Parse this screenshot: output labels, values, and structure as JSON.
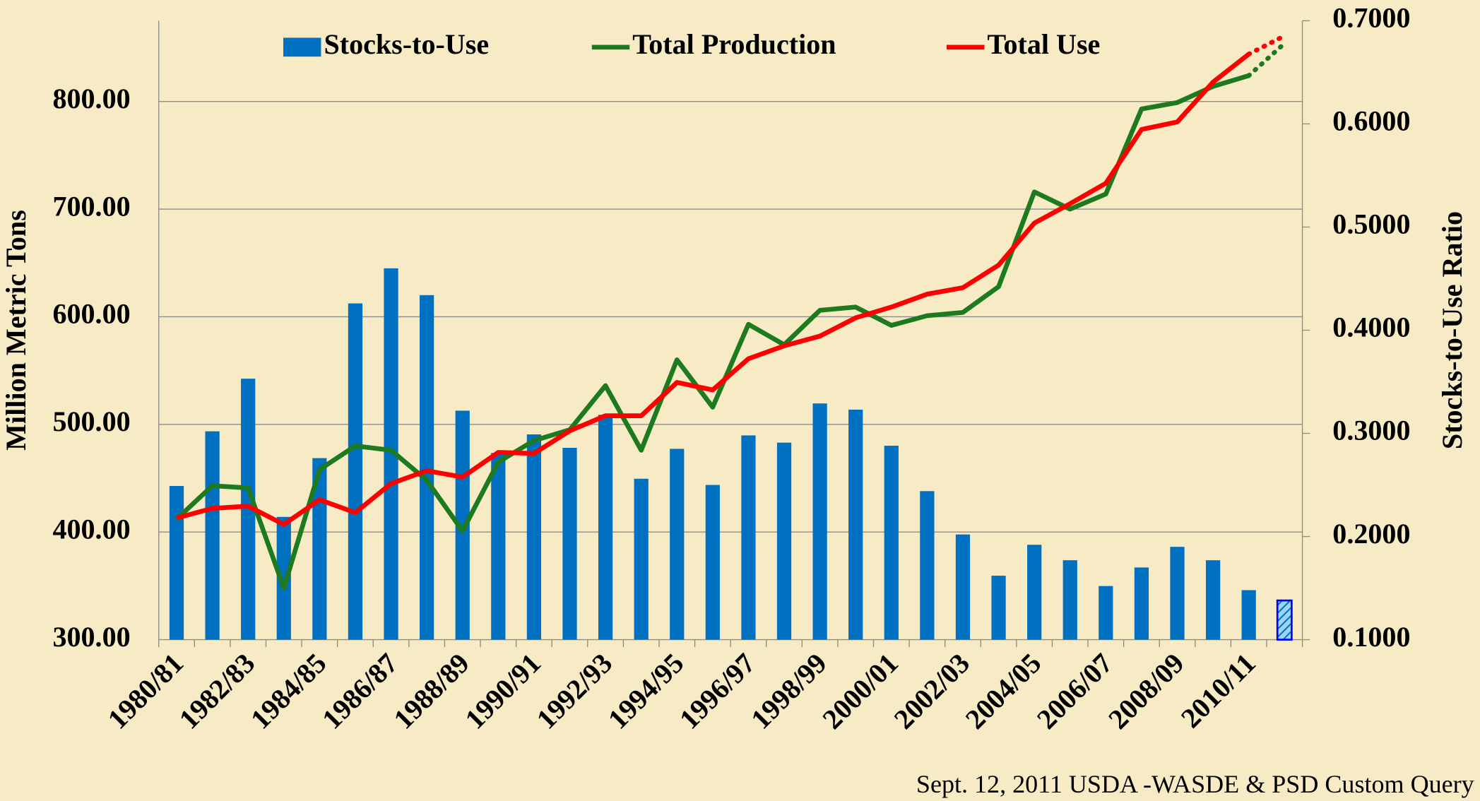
{
  "chart_data": {
    "type": "bar",
    "categories": [
      "1980/81",
      null,
      "1982/83",
      null,
      "1984/85",
      null,
      "1986/87",
      null,
      "1988/89",
      null,
      "1990/91",
      null,
      "1992/93",
      null,
      "1994/95",
      null,
      "1996/97",
      null,
      "1998/99",
      null,
      "2000/01",
      null,
      "2002/03",
      null,
      "2004/05",
      null,
      "2006/07",
      null,
      "2008/09",
      null,
      "2010/11",
      null
    ],
    "series": [
      {
        "name": "Stocks-to-Use",
        "type": "bar",
        "axis": "y2",
        "color": "#0070c0",
        "values": [
          0.249,
          0.302,
          0.353,
          0.219,
          0.276,
          0.426,
          0.46,
          0.434,
          0.322,
          0.281,
          0.299,
          0.286,
          0.318,
          0.256,
          0.285,
          0.25,
          0.298,
          0.291,
          0.329,
          0.323,
          0.288,
          0.244,
          0.202,
          0.162,
          0.192,
          0.177,
          0.152,
          0.17,
          0.19,
          0.177,
          0.148,
          0.138
        ]
      },
      {
        "name": "Total Production",
        "type": "line",
        "color": "#1e7a1e",
        "values": [
          412,
          443,
          441,
          348,
          458,
          480,
          476,
          448,
          401,
          465,
          485,
          495,
          536,
          476,
          560,
          516,
          593,
          574,
          606,
          609,
          592,
          601,
          604,
          628,
          716,
          700,
          714,
          793,
          799,
          814,
          824,
          854
        ]
      },
      {
        "name": "Total Use",
        "type": "line",
        "color": "#ff0000",
        "values": [
          413,
          422,
          424,
          407,
          430,
          418,
          445,
          457,
          451,
          474,
          473,
          494,
          508,
          508,
          539,
          532,
          561,
          573,
          582,
          599,
          609,
          621,
          627,
          648,
          687,
          705,
          724,
          774,
          781,
          818,
          844,
          861
        ]
      }
    ],
    "y_label": "Million Metric Tons",
    "y2_label": "Stocks-to-Use Ratio",
    "ylim": [
      300,
      875
    ],
    "yticks": [
      {
        "value": 300,
        "label": "300.00"
      },
      {
        "value": 400,
        "label": "400.00"
      },
      {
        "value": 500,
        "label": "500.00"
      },
      {
        "value": 600,
        "label": "600.00"
      },
      {
        "value": 700,
        "label": "700.00"
      },
      {
        "value": 800,
        "label": "800.00"
      }
    ],
    "y2lim": [
      0.1,
      0.7
    ],
    "y2ticks": [
      {
        "value": 0.1,
        "label": "0.1000"
      },
      {
        "value": 0.2,
        "label": "0.2000"
      },
      {
        "value": 0.3,
        "label": "0.3000"
      },
      {
        "value": 0.4,
        "label": "0.4000"
      },
      {
        "value": 0.5,
        "label": "0.5000"
      },
      {
        "value": 0.6,
        "label": "0.6000"
      },
      {
        "value": 0.7,
        "label": "0.7000"
      }
    ],
    "grid": true,
    "legend": "top",
    "source": "Sept. 12, 2011 USDA -WASDE & PSD Custom Query"
  }
}
